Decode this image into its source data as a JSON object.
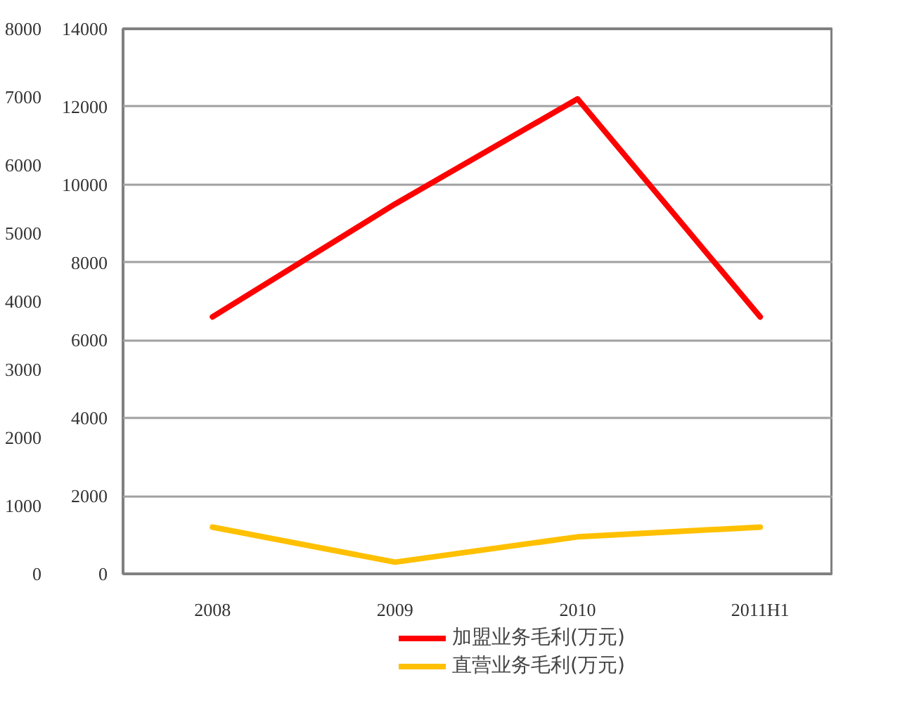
{
  "chart_data": {
    "type": "line",
    "categories": [
      "2008",
      "2009",
      "2010",
      "2011H1"
    ],
    "series": [
      {
        "name": "加盟业务毛利(万元)",
        "color": "#ff0000",
        "values": [
          6600,
          9500,
          12200,
          6600
        ]
      },
      {
        "name": "直营业务毛利(万元)",
        "color": "#ffc000",
        "values": [
          1200,
          300,
          950,
          1200
        ]
      }
    ],
    "ylim": [
      0,
      14000
    ],
    "yticks": [
      0,
      2000,
      4000,
      6000,
      8000,
      10000,
      12000,
      14000
    ],
    "y2lim": [
      0,
      8000
    ],
    "y2ticks": [
      0,
      1000,
      2000,
      3000,
      4000,
      5000,
      6000,
      7000,
      8000
    ],
    "grid": "y",
    "legend": "bottom",
    "marker": "none",
    "line_style": "solid"
  }
}
